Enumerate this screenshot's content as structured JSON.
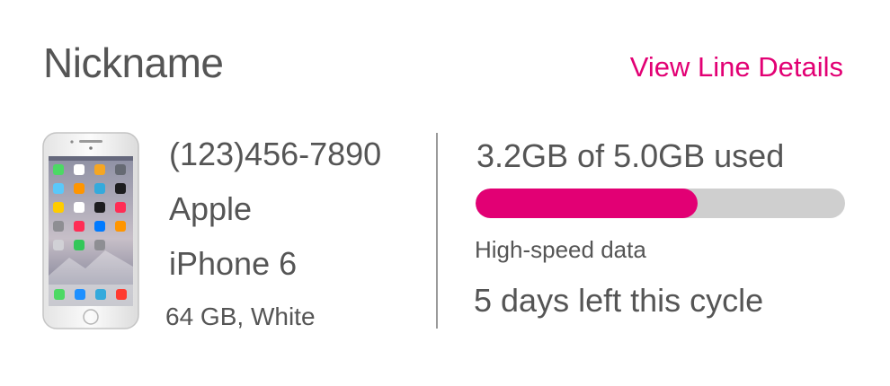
{
  "header": {
    "title": "Nickname",
    "view_details_label": "View Line Details"
  },
  "colors": {
    "accent": "#e20074",
    "text": "#555555",
    "bar_track": "#cfcfcf"
  },
  "device": {
    "image_icon": "iphone-device-icon",
    "phone_number": "(123)456-7890",
    "make": "Apple",
    "model": "iPhone 6",
    "spec": "64 GB, White"
  },
  "usage": {
    "summary": "3.2GB of 5.0GB used",
    "used_gb": 3.2,
    "total_gb": 5.0,
    "fill_fraction": 0.6,
    "data_label": "High-speed data",
    "cycle_text": "5 days left this cycle"
  }
}
